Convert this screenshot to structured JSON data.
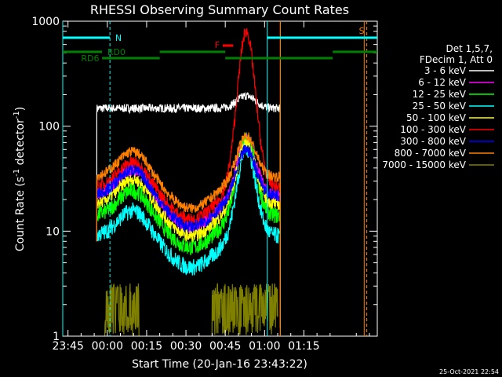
{
  "chart_data": {
    "type": "line",
    "title": "RHESSI Observing Summary Count Rates",
    "xlabel": "Start Time (20-Jan-16 23:43:22)",
    "ylabel_main": "Count Rate (s",
    "ylabel_sup1": "-1",
    "ylabel_mid": " detector",
    "ylabel_sup2": "-1",
    "ylabel_end": ")",
    "yscale": "log",
    "ylim": [
      1,
      1000
    ],
    "xlim_minutes": [
      -17,
      103
    ],
    "x_ticks": [
      {
        "label": "23:45",
        "m": -15
      },
      {
        "label": "00:00",
        "m": 0
      },
      {
        "label": "00:15",
        "m": 15
      },
      {
        "label": "00:30",
        "m": 30
      },
      {
        "label": "00:45",
        "m": 45
      },
      {
        "label": "01:00",
        "m": 60
      },
      {
        "label": "01:15",
        "m": 75
      }
    ],
    "y_ticks": [
      {
        "label": "1",
        "v": 1
      },
      {
        "label": "10",
        "v": 10
      },
      {
        "label": "100",
        "v": 100
      },
      {
        "label": "1000",
        "v": 1000
      }
    ],
    "legend": {
      "header": [
        "Det 1,5,7,",
        "FDecim 1, Att 0"
      ],
      "placement": "right"
    },
    "series": [
      {
        "name": "3 - 6 keV",
        "color": "#ffffff",
        "baseline": 148,
        "flare": 0.12,
        "noise": 0.04
      },
      {
        "name": "6 - 12 keV",
        "color": "#ff00ff",
        "baseline": 22,
        "flare": 0.55,
        "noise": 0.06
      },
      {
        "name": "12 - 25 keV",
        "color": "#00ff00",
        "baseline": 14,
        "flare": 0.75,
        "noise": 0.08
      },
      {
        "name": "25 - 50 keV",
        "color": "#00ffff",
        "baseline": 9,
        "flare": 0.85,
        "noise": 0.08
      },
      {
        "name": "50 - 100 keV",
        "color": "#ffff00",
        "baseline": 18,
        "flare": 0.6,
        "noise": 0.06
      },
      {
        "name": "100 - 300 keV",
        "color": "#ff0000",
        "baseline": 26,
        "flare": 1.5,
        "noise": 0.06
      },
      {
        "name": "300 - 800 keV",
        "color": "#0000ff",
        "baseline": 22,
        "flare": 0.45,
        "noise": 0.06
      },
      {
        "name": "800 - 7000 keV",
        "color": "#ff8000",
        "baseline": 33,
        "flare": 0.4,
        "noise": 0.05
      },
      {
        "name": "7000 - 15000 keV",
        "color": "#808000",
        "baseline": 2,
        "flare": 0.0,
        "noise": 0.2
      }
    ],
    "data_interval_minutes": [
      -4,
      66
    ],
    "flare_peak_minute": 53,
    "annotations": {
      "N": {
        "label": "N",
        "color": "#00ffff"
      },
      "F": {
        "label": "F",
        "color": "#ff0000"
      },
      "S": {
        "label": "S",
        "color": "#ff8000"
      },
      "RD0": {
        "label": "RD0",
        "color": "#008000"
      },
      "RD6": {
        "label": "RD6",
        "color": "#008000"
      }
    },
    "timestamp": "25-Oct-2021 22:54"
  }
}
